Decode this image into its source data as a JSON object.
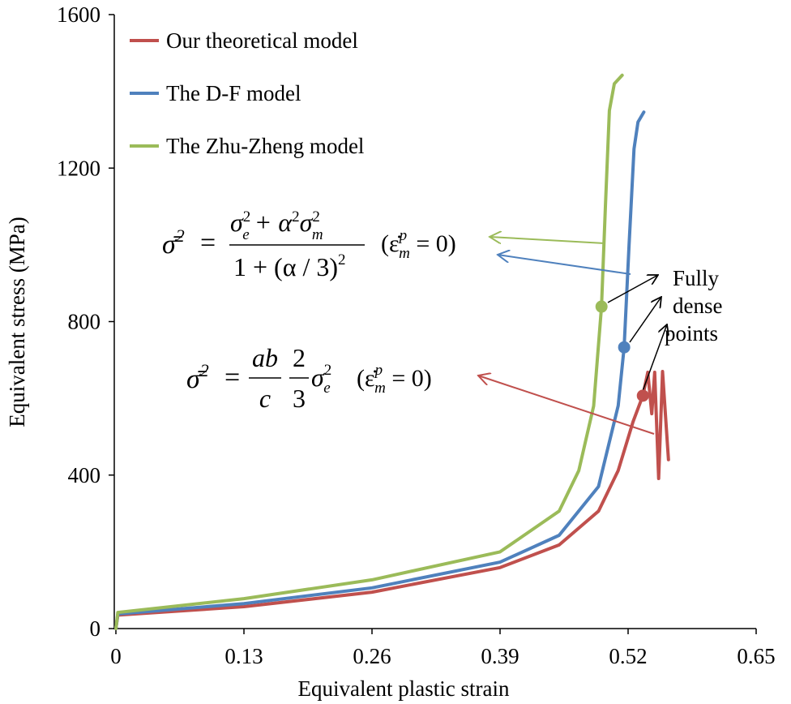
{
  "chart_data": {
    "type": "line",
    "xlabel": "Equivalent plastic strain",
    "ylabel": "Equivalent stress (MPa)",
    "xlim": [
      0,
      0.65
    ],
    "ylim": [
      0,
      1600
    ],
    "x_ticks": [
      "0",
      "0.13",
      "0.26",
      "0.39",
      "0.52",
      "0.65"
    ],
    "y_ticks": [
      "0",
      "400",
      "800",
      "1200",
      "1600"
    ],
    "grid": false,
    "legend_position": "top-left",
    "series": [
      {
        "name": "Our theoretical model",
        "color": "#c0504d",
        "x": [
          0,
          0.002,
          0.13,
          0.26,
          0.39,
          0.45,
          0.49,
          0.51,
          0.525,
          0.535,
          0.54,
          0.544,
          0.547,
          0.551,
          0.555,
          0.561
        ],
        "y": [
          0,
          35,
          57,
          95,
          159,
          218,
          306,
          412,
          539,
          607,
          668,
          560,
          668,
          391,
          670,
          440
        ],
        "marker": {
          "x": 0.535,
          "y": 607
        }
      },
      {
        "name": "The D-F model",
        "color": "#4f81bd",
        "x": [
          0,
          0.002,
          0.13,
          0.26,
          0.39,
          0.45,
          0.49,
          0.51,
          0.516,
          0.521,
          0.526,
          0.53,
          0.536
        ],
        "y": [
          0,
          38,
          65,
          106,
          173,
          243,
          370,
          581,
          733,
          1000,
          1250,
          1320,
          1346
        ],
        "marker": {
          "x": 0.516,
          "y": 733
        }
      },
      {
        "name": "The Zhu-Zheng model",
        "color": "#9bbb59",
        "x": [
          0,
          0.002,
          0.13,
          0.26,
          0.39,
          0.45,
          0.47,
          0.485,
          0.493,
          0.497,
          0.501,
          0.506,
          0.514
        ],
        "y": [
          0,
          42,
          78,
          127,
          200,
          306,
          412,
          580,
          839,
          1100,
          1350,
          1420,
          1442
        ],
        "marker": {
          "x": 0.493,
          "y": 839
        }
      }
    ],
    "annotations": {
      "fully_dense": [
        "Fully",
        "dense",
        "points"
      ],
      "formula1": {
        "lhs": "σ̄",
        "sup": "2",
        "eq": "=",
        "num_a": "σ",
        "num_a_sup": "2",
        "num_a_sub": "e",
        "num_plus": "+ α",
        "num_alpha_sup": "2",
        "num_b": "σ",
        "num_b_sup": "2",
        "num_b_sub": "m",
        "den": "1 + (α / 3)",
        "den_sup": "2",
        "cond_open": "(ε̇",
        "cond_sup": "p",
        "cond_sub": "m",
        "cond_rest": " = 0)"
      },
      "formula2": {
        "lhs": "σ̄",
        "sup": "2",
        "eq": "=",
        "f1_num": "ab",
        "f1_den": "c",
        "f2_num": "2",
        "f2_den": "3",
        "s": "σ",
        "s_sup": "2",
        "s_sub": "e",
        "cond_open": "(ε̇",
        "cond_sup": "p",
        "cond_sub": "m",
        "cond_rest": " = 0)"
      }
    }
  }
}
